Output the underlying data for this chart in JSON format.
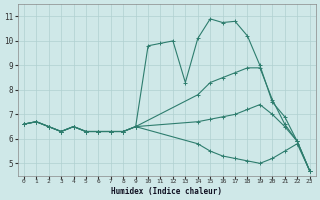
{
  "xlabel": "Humidex (Indice chaleur)",
  "background_color": "#cfe8e8",
  "grid_color": "#b0d0d0",
  "line_color": "#2e7d6e",
  "xlim": [
    -0.5,
    23.5
  ],
  "ylim": [
    4.5,
    11.5
  ],
  "xticks": [
    0,
    1,
    2,
    3,
    4,
    5,
    6,
    7,
    8,
    9,
    10,
    11,
    12,
    13,
    14,
    15,
    16,
    17,
    18,
    19,
    20,
    21,
    22,
    23
  ],
  "yticks": [
    5,
    6,
    7,
    8,
    9,
    10,
    11
  ],
  "line1_x": [
    0,
    1,
    2,
    3,
    4,
    5,
    6,
    7,
    8,
    9,
    10,
    11,
    12,
    13,
    14,
    15,
    16,
    17,
    18,
    19,
    20,
    21,
    22,
    23
  ],
  "line1_y": [
    6.6,
    6.7,
    6.5,
    6.3,
    6.5,
    6.3,
    6.3,
    6.3,
    6.3,
    6.5,
    9.8,
    9.9,
    10.0,
    8.3,
    10.1,
    10.9,
    10.75,
    10.8,
    10.2,
    9.0,
    7.5,
    6.9,
    5.9,
    4.7
  ],
  "line2_x": [
    0,
    1,
    2,
    3,
    4,
    5,
    6,
    7,
    8,
    9,
    14,
    15,
    16,
    17,
    18,
    19,
    20,
    21,
    22,
    23
  ],
  "line2_y": [
    6.6,
    6.7,
    6.5,
    6.3,
    6.5,
    6.3,
    6.3,
    6.3,
    6.3,
    6.5,
    7.8,
    8.3,
    8.5,
    8.7,
    8.9,
    8.9,
    7.6,
    6.6,
    5.9,
    4.7
  ],
  "line3_x": [
    0,
    1,
    2,
    3,
    4,
    5,
    6,
    7,
    8,
    9,
    14,
    15,
    16,
    17,
    18,
    19,
    20,
    21,
    22,
    23
  ],
  "line3_y": [
    6.6,
    6.7,
    6.5,
    6.3,
    6.5,
    6.3,
    6.3,
    6.3,
    6.3,
    6.5,
    6.7,
    6.8,
    6.9,
    7.0,
    7.2,
    7.4,
    7.0,
    6.5,
    5.9,
    4.7
  ],
  "line4_x": [
    0,
    1,
    2,
    3,
    4,
    5,
    6,
    7,
    8,
    9,
    14,
    15,
    16,
    17,
    18,
    19,
    20,
    21,
    22,
    23
  ],
  "line4_y": [
    6.6,
    6.7,
    6.5,
    6.3,
    6.5,
    6.3,
    6.3,
    6.3,
    6.3,
    6.5,
    5.8,
    5.5,
    5.3,
    5.2,
    5.1,
    5.0,
    5.2,
    5.5,
    5.8,
    4.7
  ]
}
